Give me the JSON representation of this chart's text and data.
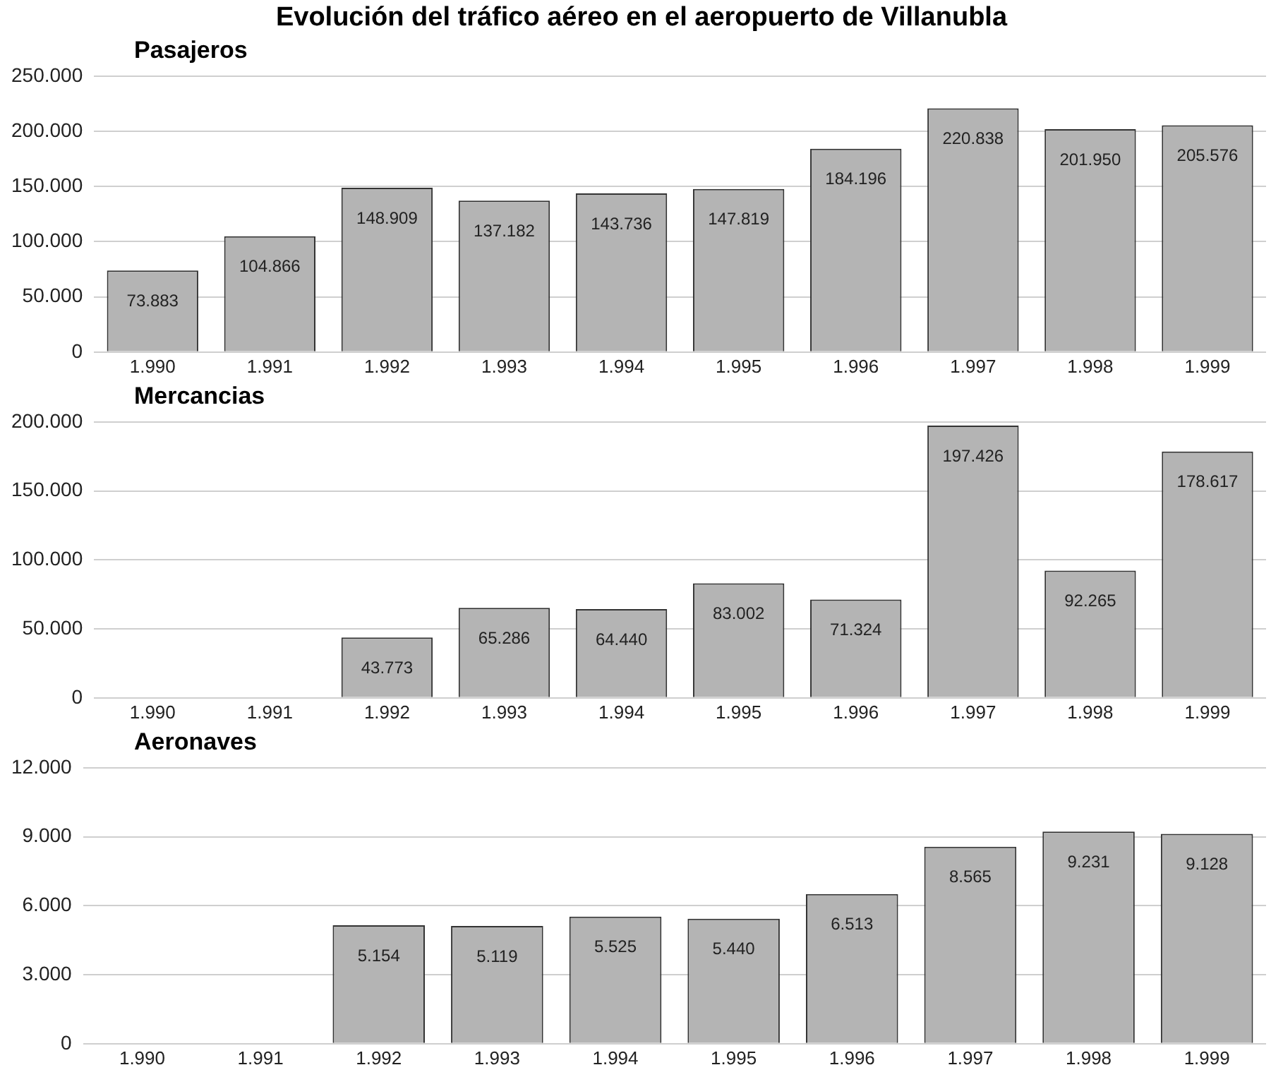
{
  "chart_data": [
    {
      "type": "bar",
      "title": "Evolución del tráfico aéreo en el aeropuerto de Villanubla",
      "subtitle": "Pasajeros",
      "categories": [
        "1.990",
        "1.991",
        "1.992",
        "1.993",
        "1.994",
        "1.995",
        "1.996",
        "1.997",
        "1.998",
        "1.999"
      ],
      "values": [
        73883,
        104866,
        148909,
        137182,
        143736,
        147819,
        184196,
        220838,
        201950,
        205576
      ],
      "value_labels": [
        "73.883",
        "104.866",
        "148.909",
        "137.182",
        "143.736",
        "147.819",
        "184.196",
        "220.838",
        "201.950",
        "205.576"
      ],
      "color": "#b4b4b4",
      "ylim": [
        0,
        250000
      ],
      "yticks": [
        {
          "value": 0,
          "label": "0"
        },
        {
          "value": 50000,
          "label": "50.000"
        },
        {
          "value": 100000,
          "label": "100.000"
        },
        {
          "value": 150000,
          "label": "150.000"
        },
        {
          "value": 200000,
          "label": "200.000"
        },
        {
          "value": 250000,
          "label": "250.000"
        }
      ],
      "grid": "y",
      "legend": false
    },
    {
      "type": "bar",
      "title": "Mercancias",
      "categories": [
        "1.990",
        "1.991",
        "1.992",
        "1.993",
        "1.994",
        "1.995",
        "1.996",
        "1.997",
        "1.998",
        "1.999"
      ],
      "values": [
        null,
        null,
        43773,
        65286,
        64440,
        83002,
        71324,
        197426,
        92265,
        178617
      ],
      "value_labels": [
        null,
        null,
        "43.773",
        "65.286",
        "64.440",
        "83.002",
        "71.324",
        "197.426",
        "92.265",
        "178.617"
      ],
      "color": "#b4b4b4",
      "ylim": [
        0,
        200000
      ],
      "yticks": [
        {
          "value": 0,
          "label": "0"
        },
        {
          "value": 50000,
          "label": "50.000"
        },
        {
          "value": 100000,
          "label": "100.000"
        },
        {
          "value": 150000,
          "label": "150.000"
        },
        {
          "value": 200000,
          "label": "200.000"
        }
      ],
      "grid": "y",
      "legend": false
    },
    {
      "type": "bar",
      "title": "Aeronaves",
      "categories": [
        "1.990",
        "1.991",
        "1.992",
        "1.993",
        "1.994",
        "1.995",
        "1.996",
        "1.997",
        "1.998",
        "1.999"
      ],
      "values": [
        null,
        null,
        5154,
        5119,
        5525,
        5440,
        6513,
        8565,
        9231,
        9128
      ],
      "value_labels": [
        null,
        null,
        "5.154",
        "5.119",
        "5.525",
        "5.440",
        "6.513",
        "8.565",
        "9.231",
        "9.128"
      ],
      "color": "#b4b4b4",
      "ylim": [
        0,
        12000
      ],
      "yticks": [
        {
          "value": 0,
          "label": "0"
        },
        {
          "value": 3000,
          "label": "3.000"
        },
        {
          "value": 6000,
          "label": "6.000"
        },
        {
          "value": 9000,
          "label": "9.000"
        },
        {
          "value": 12000,
          "label": "12.000"
        }
      ],
      "grid": "y",
      "legend": false
    }
  ]
}
